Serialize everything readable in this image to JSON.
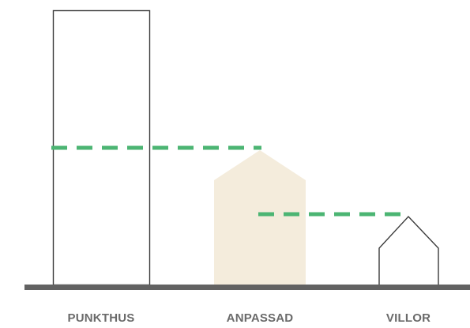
{
  "colors": {
    "outline": "#3a3a3a",
    "ground": "#626262",
    "dash": "#4cb573",
    "fill": "#f4ecdc",
    "label": "#6a6a6a"
  },
  "buildings": [
    {
      "name": "PUNKTHUS",
      "shape": "tower",
      "style": "outline"
    },
    {
      "name": "ANPASSAD",
      "shape": "house",
      "style": "filled"
    },
    {
      "name": "VILLOR",
      "shape": "house",
      "style": "outline"
    }
  ],
  "labels": {
    "punkthus": "PUNKTHUS",
    "anpassad": "ANPASSAD",
    "villor": "VILLOR"
  }
}
